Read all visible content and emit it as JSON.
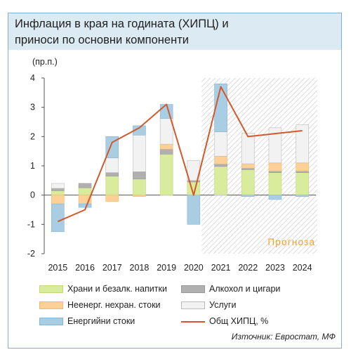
{
  "title_lines": [
    "Инфлация в края на годината (ХИПЦ) и",
    "приноси по основни компоненти"
  ],
  "source": "Източник: Евростат, МФ",
  "chart_data": {
    "type": "bar",
    "stacked": true,
    "unit_label": "(пр.п.)",
    "ylim": [
      -2,
      4
    ],
    "yticks": [
      -2,
      -1,
      0,
      1,
      2,
      3,
      4
    ],
    "categories": [
      "2015",
      "2016",
      "2017",
      "2018",
      "2019",
      "2020",
      "2021",
      "2022",
      "2023",
      "2024"
    ],
    "forecast": {
      "label": "Прогноза",
      "from": "2021",
      "to": "2024"
    },
    "series": [
      {
        "name": "Храни и безалк. напитки",
        "color": "#d9eb9c",
        "stroke": "#c3d87a",
        "values": [
          0.15,
          0.25,
          0.65,
          0.55,
          1.4,
          0.45,
          0.98,
          0.87,
          0.77,
          0.77
        ]
      },
      {
        "name": "Алкохол и цигари",
        "color": "#b0b0b0",
        "stroke": "#999999",
        "values": [
          0.08,
          0.15,
          0.12,
          0.25,
          0.17,
          0.05,
          0.08,
          0.05,
          0.05,
          0.05
        ]
      },
      {
        "name": "Неенерг. нехран. стоки",
        "color": "#fcd096",
        "stroke": "#f3b868",
        "values": [
          -0.3,
          -0.3,
          -0.22,
          -0.05,
          0.17,
          0.0,
          0.27,
          0.15,
          0.28,
          0.28
        ]
      },
      {
        "name": "Услуги",
        "color": "#f2f2f2",
        "stroke": "#bbbbbb",
        "values": [
          0.17,
          0.0,
          0.5,
          1.25,
          0.88,
          0.68,
          0.83,
          1.05,
          1.2,
          1.3
        ]
      },
      {
        "name": "Енергийни стоки",
        "color": "#a9cde3",
        "stroke": "#86b6d4",
        "values": [
          -0.95,
          -0.12,
          0.73,
          0.32,
          0.48,
          -1.0,
          1.64,
          -0.05,
          -0.15,
          -0.05
        ]
      }
    ],
    "line": {
      "name": "Общ ХИПЦ, %",
      "color": "#d05a2c",
      "values": [
        -0.9,
        -0.5,
        1.8,
        2.3,
        3.1,
        0.0,
        3.7,
        2.0,
        2.1,
        2.2
      ]
    },
    "legend": [
      {
        "series": 0
      },
      {
        "series": 1
      },
      {
        "series": 2
      },
      {
        "series": 3
      },
      {
        "series": 4
      },
      {
        "line": true
      }
    ]
  }
}
